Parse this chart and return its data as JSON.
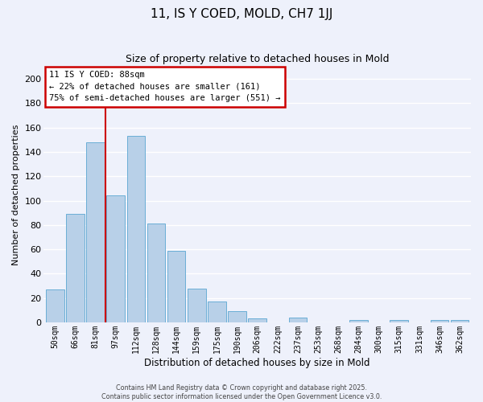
{
  "title": "11, IS Y COED, MOLD, CH7 1JJ",
  "subtitle": "Size of property relative to detached houses in Mold",
  "xlabel": "Distribution of detached houses by size in Mold",
  "ylabel": "Number of detached properties",
  "bar_labels": [
    "50sqm",
    "66sqm",
    "81sqm",
    "97sqm",
    "112sqm",
    "128sqm",
    "144sqm",
    "159sqm",
    "175sqm",
    "190sqm",
    "206sqm",
    "222sqm",
    "237sqm",
    "253sqm",
    "268sqm",
    "284sqm",
    "300sqm",
    "315sqm",
    "331sqm",
    "346sqm",
    "362sqm"
  ],
  "bar_values": [
    27,
    89,
    148,
    104,
    153,
    81,
    59,
    28,
    17,
    9,
    3,
    0,
    4,
    0,
    0,
    2,
    0,
    2,
    0,
    2,
    2
  ],
  "bar_color": "#b8d0e8",
  "bar_edge_color": "#6aaed6",
  "vline_x": 2.5,
  "vline_color": "#cc0000",
  "annotation_line1": "11 IS Y COED: 88sqm",
  "annotation_line2": "← 22% of detached houses are smaller (161)",
  "annotation_line3": "75% of semi-detached houses are larger (551) →",
  "ylim": [
    0,
    210
  ],
  "yticks": [
    0,
    20,
    40,
    60,
    80,
    100,
    120,
    140,
    160,
    180,
    200
  ],
  "bg_color": "#eef1fb",
  "grid_color": "#ffffff",
  "footer_line1": "Contains HM Land Registry data © Crown copyright and database right 2025.",
  "footer_line2": "Contains public sector information licensed under the Open Government Licence v3.0."
}
